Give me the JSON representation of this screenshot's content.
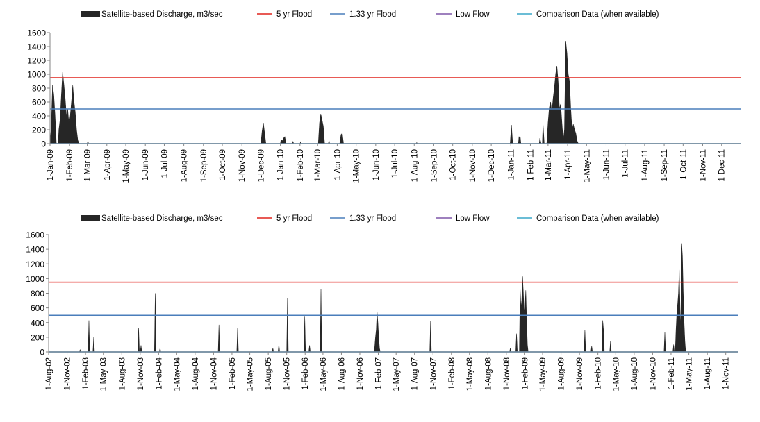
{
  "chart_data": [
    {
      "type": "area",
      "title": "",
      "xlabel": "",
      "ylabel": "",
      "ylim": [
        0,
        1600
      ],
      "yticks": [
        0,
        200,
        400,
        600,
        800,
        1000,
        1200,
        1400,
        1600
      ],
      "grid": false,
      "legend_position": "top",
      "x_start": "1-Jan-09",
      "x_end": "31-Dec-11",
      "x_tick_labels": [
        "1-Jan-09",
        "1-Feb-09",
        "1-Mar-09",
        "1-Apr-09",
        "1-May-09",
        "1-Jun-09",
        "1-Jul-09",
        "1-Aug-09",
        "1-Sep-09",
        "1-Oct-09",
        "1-Nov-09",
        "1-Dec-09",
        "1-Jan-10",
        "1-Feb-10",
        "1-Mar-10",
        "1-Apr-10",
        "1-May-10",
        "1-Jun-10",
        "1-Jul-10",
        "1-Aug-10",
        "1-Sep-10",
        "1-Oct-10",
        "1-Nov-10",
        "1-Dec-10",
        "1-Jan-11",
        "1-Feb-11",
        "1-Mar-11",
        "1-Apr-11",
        "1-May-11",
        "1-Jun-11",
        "1-Jul-11",
        "1-Aug-11",
        "1-Sep-11",
        "1-Oct-11",
        "1-Nov-11",
        "1-Dec-11"
      ],
      "legend": [
        {
          "name": "Satellite-based Discharge, m3/sec",
          "color": "#262626",
          "kind": "area"
        },
        {
          "name": "5 yr Flood",
          "color": "#e0231d",
          "kind": "line"
        },
        {
          "name": "1.33 yr Flood",
          "color": "#4a7ebb",
          "kind": "line"
        },
        {
          "name": "Low Flow",
          "color": "#7e57a8",
          "kind": "line"
        },
        {
          "name": "Comparison Data (when available)",
          "color": "#3aa7c9",
          "kind": "line"
        }
      ],
      "reference_lines": [
        {
          "name": "5 yr Flood",
          "value": 950,
          "color": "#e0231d"
        },
        {
          "name": "1.33 yr Flood",
          "value": 500,
          "color": "#4a7ebb"
        },
        {
          "name": "Low Flow",
          "value": 0,
          "color": "#7e57a8"
        },
        {
          "name": "Comparison Data (when available)",
          "value": 0,
          "color": "#3aa7c9"
        }
      ],
      "series": [
        {
          "name": "Satellite-based Discharge, m3/sec",
          "color": "#262626",
          "points": [
            [
              "1-Jan-09",
              0
            ],
            [
              "3-Jan-09",
              250
            ],
            [
              "5-Jan-09",
              850
            ],
            [
              "7-Jan-09",
              700
            ],
            [
              "9-Jan-09",
              400
            ],
            [
              "11-Jan-09",
              0
            ],
            [
              "14-Jan-09",
              0
            ],
            [
              "15-Jan-09",
              200
            ],
            [
              "17-Jan-09",
              350
            ],
            [
              "19-Jan-09",
              700
            ],
            [
              "21-Jan-09",
              1030
            ],
            [
              "23-Jan-09",
              850
            ],
            [
              "25-Jan-09",
              650
            ],
            [
              "27-Jan-09",
              400
            ],
            [
              "29-Jan-09",
              500
            ],
            [
              "31-Jan-09",
              280
            ],
            [
              "2-Feb-09",
              400
            ],
            [
              "4-Feb-09",
              600
            ],
            [
              "6-Feb-09",
              840
            ],
            [
              "8-Feb-09",
              600
            ],
            [
              "10-Feb-09",
              450
            ],
            [
              "12-Feb-09",
              200
            ],
            [
              "14-Feb-09",
              50
            ],
            [
              "16-Feb-09",
              0
            ],
            [
              "1-Mar-09",
              0
            ],
            [
              "2-Mar-09",
              40
            ],
            [
              "3-Mar-09",
              0
            ],
            [
              "1-Dec-09",
              0
            ],
            [
              "3-Dec-09",
              180
            ],
            [
              "5-Dec-09",
              300
            ],
            [
              "7-Dec-09",
              150
            ],
            [
              "9-Dec-09",
              0
            ],
            [
              "1-Jan-10",
              0
            ],
            [
              "2-Jan-10",
              60
            ],
            [
              "4-Jan-10",
              40
            ],
            [
              "6-Jan-10",
              80
            ],
            [
              "8-Jan-10",
              100
            ],
            [
              "10-Jan-10",
              0
            ],
            [
              "20-Jan-10",
              0
            ],
            [
              "21-Jan-10",
              30
            ],
            [
              "22-Jan-10",
              0
            ],
            [
              "1-Feb-10",
              0
            ],
            [
              "2-Feb-10",
              25
            ],
            [
              "3-Feb-10",
              0
            ],
            [
              "2-Mar-10",
              0
            ],
            [
              "4-Mar-10",
              300
            ],
            [
              "6-Mar-10",
              430
            ],
            [
              "8-Mar-10",
              340
            ],
            [
              "10-Mar-10",
              250
            ],
            [
              "12-Mar-10",
              0
            ],
            [
              "18-Mar-10",
              0
            ],
            [
              "19-Mar-10",
              50
            ],
            [
              "20-Mar-10",
              0
            ],
            [
              "5-Apr-10",
              0
            ],
            [
              "7-Apr-10",
              130
            ],
            [
              "9-Apr-10",
              150
            ],
            [
              "11-Apr-10",
              0
            ],
            [
              "4-Aug-10",
              0
            ],
            [
              "5-Aug-10",
              15
            ],
            [
              "6-Aug-10",
              0
            ],
            [
              "31-Dec-10",
              0
            ],
            [
              "2-Jan-11",
              270
            ],
            [
              "4-Jan-11",
              0
            ],
            [
              "13-Jan-11",
              0
            ],
            [
              "14-Jan-11",
              100
            ],
            [
              "16-Jan-11",
              90
            ],
            [
              "17-Jan-11",
              0
            ],
            [
              "15-Feb-11",
              0
            ],
            [
              "16-Feb-11",
              80
            ],
            [
              "18-Feb-11",
              0
            ],
            [
              "20-Feb-11",
              0
            ],
            [
              "21-Feb-11",
              290
            ],
            [
              "23-Feb-11",
              0
            ],
            [
              "27-Feb-11",
              0
            ],
            [
              "1-Mar-11",
              300
            ],
            [
              "3-Mar-11",
              520
            ],
            [
              "5-Mar-11",
              600
            ],
            [
              "7-Mar-11",
              450
            ],
            [
              "9-Mar-11",
              650
            ],
            [
              "11-Mar-11",
              800
            ],
            [
              "13-Mar-11",
              1000
            ],
            [
              "15-Mar-11",
              1120
            ],
            [
              "17-Mar-11",
              900
            ],
            [
              "19-Mar-11",
              500
            ],
            [
              "21-Mar-11",
              570
            ],
            [
              "23-Mar-11",
              300
            ],
            [
              "25-Mar-11",
              50
            ],
            [
              "27-Mar-11",
              200
            ],
            [
              "29-Mar-11",
              1480
            ],
            [
              "31-Mar-11",
              1300
            ],
            [
              "2-Apr-11",
              1000
            ],
            [
              "4-Apr-11",
              900
            ],
            [
              "6-Apr-11",
              500
            ],
            [
              "8-Apr-11",
              200
            ],
            [
              "10-Apr-11",
              280
            ],
            [
              "12-Apr-11",
              200
            ],
            [
              "14-Apr-11",
              150
            ],
            [
              "16-Apr-11",
              40
            ],
            [
              "18-Apr-11",
              0
            ]
          ]
        }
      ]
    },
    {
      "type": "area",
      "title": "",
      "xlabel": "",
      "ylabel": "",
      "ylim": [
        0,
        1600
      ],
      "yticks": [
        0,
        200,
        400,
        600,
        800,
        1000,
        1200,
        1400,
        1600
      ],
      "grid": false,
      "legend_position": "top",
      "x_start": "1-Aug-02",
      "x_end": "31-Dec-11",
      "x_tick_labels": [
        "1-Aug-02",
        "1-Nov-02",
        "1-Feb-03",
        "1-May-03",
        "1-Aug-03",
        "1-Nov-03",
        "1-Feb-04",
        "1-May-04",
        "1-Aug-04",
        "1-Nov-04",
        "1-Feb-05",
        "1-May-05",
        "1-Aug-05",
        "1-Nov-05",
        "1-Feb-06",
        "1-May-06",
        "1-Aug-06",
        "1-Nov-06",
        "1-Feb-07",
        "1-May-07",
        "1-Aug-07",
        "1-Nov-07",
        "1-Feb-08",
        "1-May-08",
        "1-Aug-08",
        "1-Nov-08",
        "1-Feb-09",
        "1-May-09",
        "1-Aug-09",
        "1-Nov-09",
        "1-Feb-10",
        "1-May-10",
        "1-Aug-10",
        "1-Nov-10",
        "1-Feb-11",
        "1-May-11",
        "1-Aug-11",
        "1-Nov-11"
      ],
      "legend": [
        {
          "name": "Satellite-based Discharge, m3/sec",
          "color": "#262626",
          "kind": "area"
        },
        {
          "name": "5 yr Flood",
          "color": "#e0231d",
          "kind": "line"
        },
        {
          "name": "1.33 yr Flood",
          "color": "#4a7ebb",
          "kind": "line"
        },
        {
          "name": "Low Flow",
          "color": "#7e57a8",
          "kind": "line"
        },
        {
          "name": "Comparison Data (when available)",
          "color": "#3aa7c9",
          "kind": "line"
        }
      ],
      "reference_lines": [
        {
          "name": "5 yr Flood",
          "value": 950,
          "color": "#e0231d"
        },
        {
          "name": "1.33 yr Flood",
          "value": 500,
          "color": "#4a7ebb"
        },
        {
          "name": "Low Flow",
          "value": 0,
          "color": "#7e57a8"
        },
        {
          "name": "Comparison Data (when available)",
          "value": 0,
          "color": "#3aa7c9"
        }
      ],
      "series": [
        {
          "name": "Satellite-based Discharge, m3/sec",
          "color": "#262626",
          "points": [
            [
              "1-Jan-03",
              0
            ],
            [
              "5-Jan-03",
              30
            ],
            [
              "9-Jan-03",
              0
            ],
            [
              "14-Feb-03",
              0
            ],
            [
              "18-Feb-03",
              430
            ],
            [
              "22-Feb-03",
              0
            ],
            [
              "10-Mar-03",
              0
            ],
            [
              "14-Mar-03",
              200
            ],
            [
              "18-Mar-03",
              0
            ],
            [
              "20-Oct-03",
              0
            ],
            [
              "24-Oct-03",
              330
            ],
            [
              "28-Oct-03",
              0
            ],
            [
              "1-Nov-03",
              0
            ],
            [
              "5-Nov-03",
              90
            ],
            [
              "9-Nov-03",
              0
            ],
            [
              "11-Jan-04",
              0
            ],
            [
              "15-Jan-04",
              800
            ],
            [
              "19-Jan-04",
              0
            ],
            [
              "4-Feb-04",
              0
            ],
            [
              "8-Feb-04",
              50
            ],
            [
              "12-Feb-04",
              0
            ],
            [
              "24-Nov-04",
              0
            ],
            [
              "28-Nov-04",
              370
            ],
            [
              "2-Dec-04",
              0
            ],
            [
              "25-Feb-05",
              0
            ],
            [
              "1-Mar-05",
              330
            ],
            [
              "5-Mar-05",
              0
            ],
            [
              "20-Aug-05",
              0
            ],
            [
              "24-Aug-05",
              50
            ],
            [
              "28-Aug-05",
              0
            ],
            [
              "19-Sep-05",
              0
            ],
            [
              "23-Sep-05",
              100
            ],
            [
              "27-Sep-05",
              0
            ],
            [
              "1-Nov-05",
              0
            ],
            [
              "5-Nov-05",
              730
            ],
            [
              "9-Nov-05",
              0
            ],
            [
              "26-Jan-06",
              0
            ],
            [
              "30-Jan-06",
              480
            ],
            [
              "3-Feb-06",
              0
            ],
            [
              "19-Feb-06",
              0
            ],
            [
              "23-Feb-06",
              90
            ],
            [
              "27-Feb-06",
              0
            ],
            [
              "17-Apr-06",
              0
            ],
            [
              "21-Apr-06",
              860
            ],
            [
              "25-Apr-06",
              0
            ],
            [
              "10-Jan-07",
              0
            ],
            [
              "14-Jan-07",
              60
            ],
            [
              "18-Jan-07",
              200
            ],
            [
              "22-Jan-07",
              300
            ],
            [
              "26-Jan-07",
              550
            ],
            [
              "30-Jan-07",
              400
            ],
            [
              "3-Feb-07",
              200
            ],
            [
              "7-Feb-07",
              50
            ],
            [
              "11-Feb-07",
              0
            ],
            [
              "16-Oct-07",
              0
            ],
            [
              "20-Oct-07",
              420
            ],
            [
              "24-Oct-07",
              0
            ],
            [
              "17-Nov-08",
              0
            ],
            [
              "21-Nov-08",
              50
            ],
            [
              "25-Nov-08",
              0
            ],
            [
              "18-Dec-08",
              0
            ],
            [
              "22-Dec-08",
              250
            ],
            [
              "26-Dec-08",
              0
            ],
            [
              "5-Jan-09",
              0
            ],
            [
              "9-Jan-09",
              850
            ],
            [
              "13-Jan-09",
              600
            ],
            [
              "17-Jan-09",
              700
            ],
            [
              "21-Jan-09",
              1030
            ],
            [
              "25-Jan-09",
              800
            ],
            [
              "29-Jan-09",
              500
            ],
            [
              "2-Feb-09",
              600
            ],
            [
              "6-Feb-09",
              840
            ],
            [
              "10-Feb-09",
              450
            ],
            [
              "14-Feb-09",
              100
            ],
            [
              "18-Feb-09",
              0
            ],
            [
              "24-Nov-09",
              0
            ],
            [
              "28-Nov-09",
              300
            ],
            [
              "2-Dec-09",
              0
            ],
            [
              "28-Dec-09",
              0
            ],
            [
              "1-Jan-10",
              80
            ],
            [
              "5-Jan-10",
              0
            ],
            [
              "21-Feb-10",
              0
            ],
            [
              "25-Feb-10",
              430
            ],
            [
              "1-Mar-10",
              300
            ],
            [
              "5-Mar-10",
              0
            ],
            [
              "1-Apr-10",
              0
            ],
            [
              "5-Apr-10",
              150
            ],
            [
              "9-Apr-10",
              0
            ],
            [
              "28-Dec-10",
              0
            ],
            [
              "1-Jan-11",
              270
            ],
            [
              "5-Jan-11",
              0
            ],
            [
              "10-Feb-11",
              0
            ],
            [
              "14-Feb-11",
              100
            ],
            [
              "18-Feb-11",
              0
            ],
            [
              "22-Feb-11",
              0
            ],
            [
              "26-Feb-11",
              300
            ],
            [
              "2-Mar-11",
              520
            ],
            [
              "6-Mar-11",
              650
            ],
            [
              "10-Mar-11",
              800
            ],
            [
              "14-Mar-11",
              1120
            ],
            [
              "18-Mar-11",
              600
            ],
            [
              "22-Mar-11",
              300
            ],
            [
              "26-Mar-11",
              1480
            ],
            [
              "30-Mar-11",
              1300
            ],
            [
              "3-Apr-11",
              800
            ],
            [
              "7-Apr-11",
              400
            ],
            [
              "11-Apr-11",
              150
            ],
            [
              "15-Apr-11",
              0
            ]
          ]
        }
      ]
    }
  ]
}
